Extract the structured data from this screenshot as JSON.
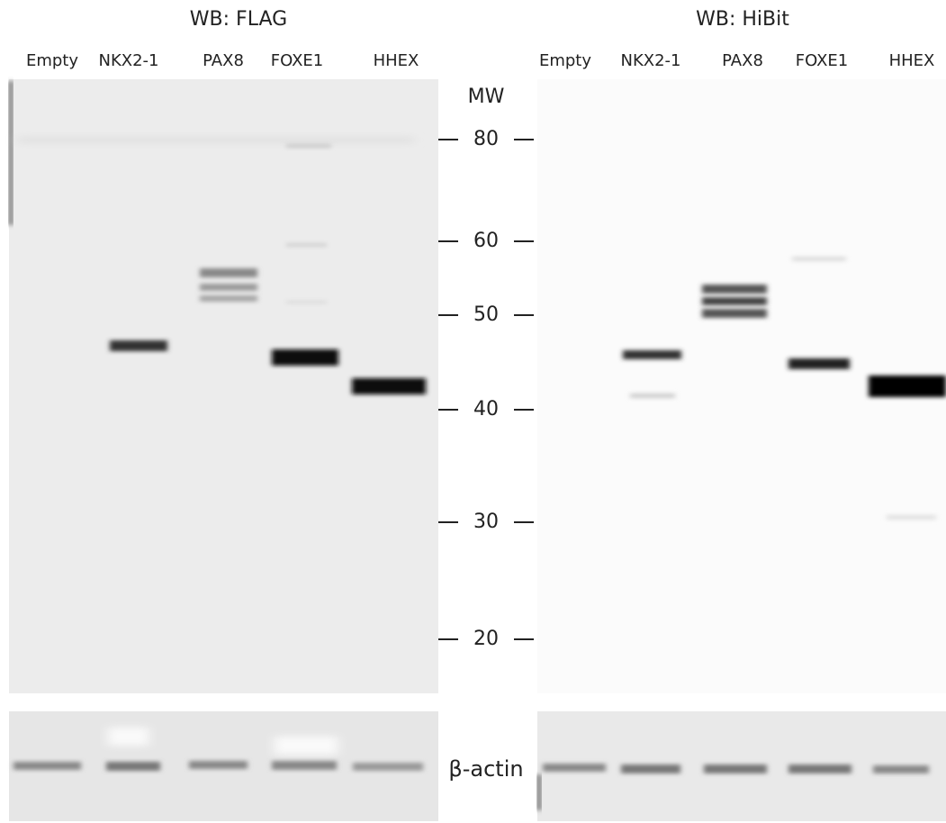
{
  "panels": [
    {
      "title": "WB: FLAG",
      "lanes": [
        "Empty",
        "NKX2-1",
        "PAX8",
        "FOXE1",
        "HHEX"
      ]
    },
    {
      "title": "WB: HiBit",
      "lanes": [
        "Empty",
        "NKX2-1",
        "PAX8",
        "FOXE1",
        "HHEX"
      ]
    }
  ],
  "mw": {
    "label": "MW",
    "markers": [
      80,
      60,
      50,
      40,
      30,
      20
    ]
  },
  "loading_control": "β-actin"
}
